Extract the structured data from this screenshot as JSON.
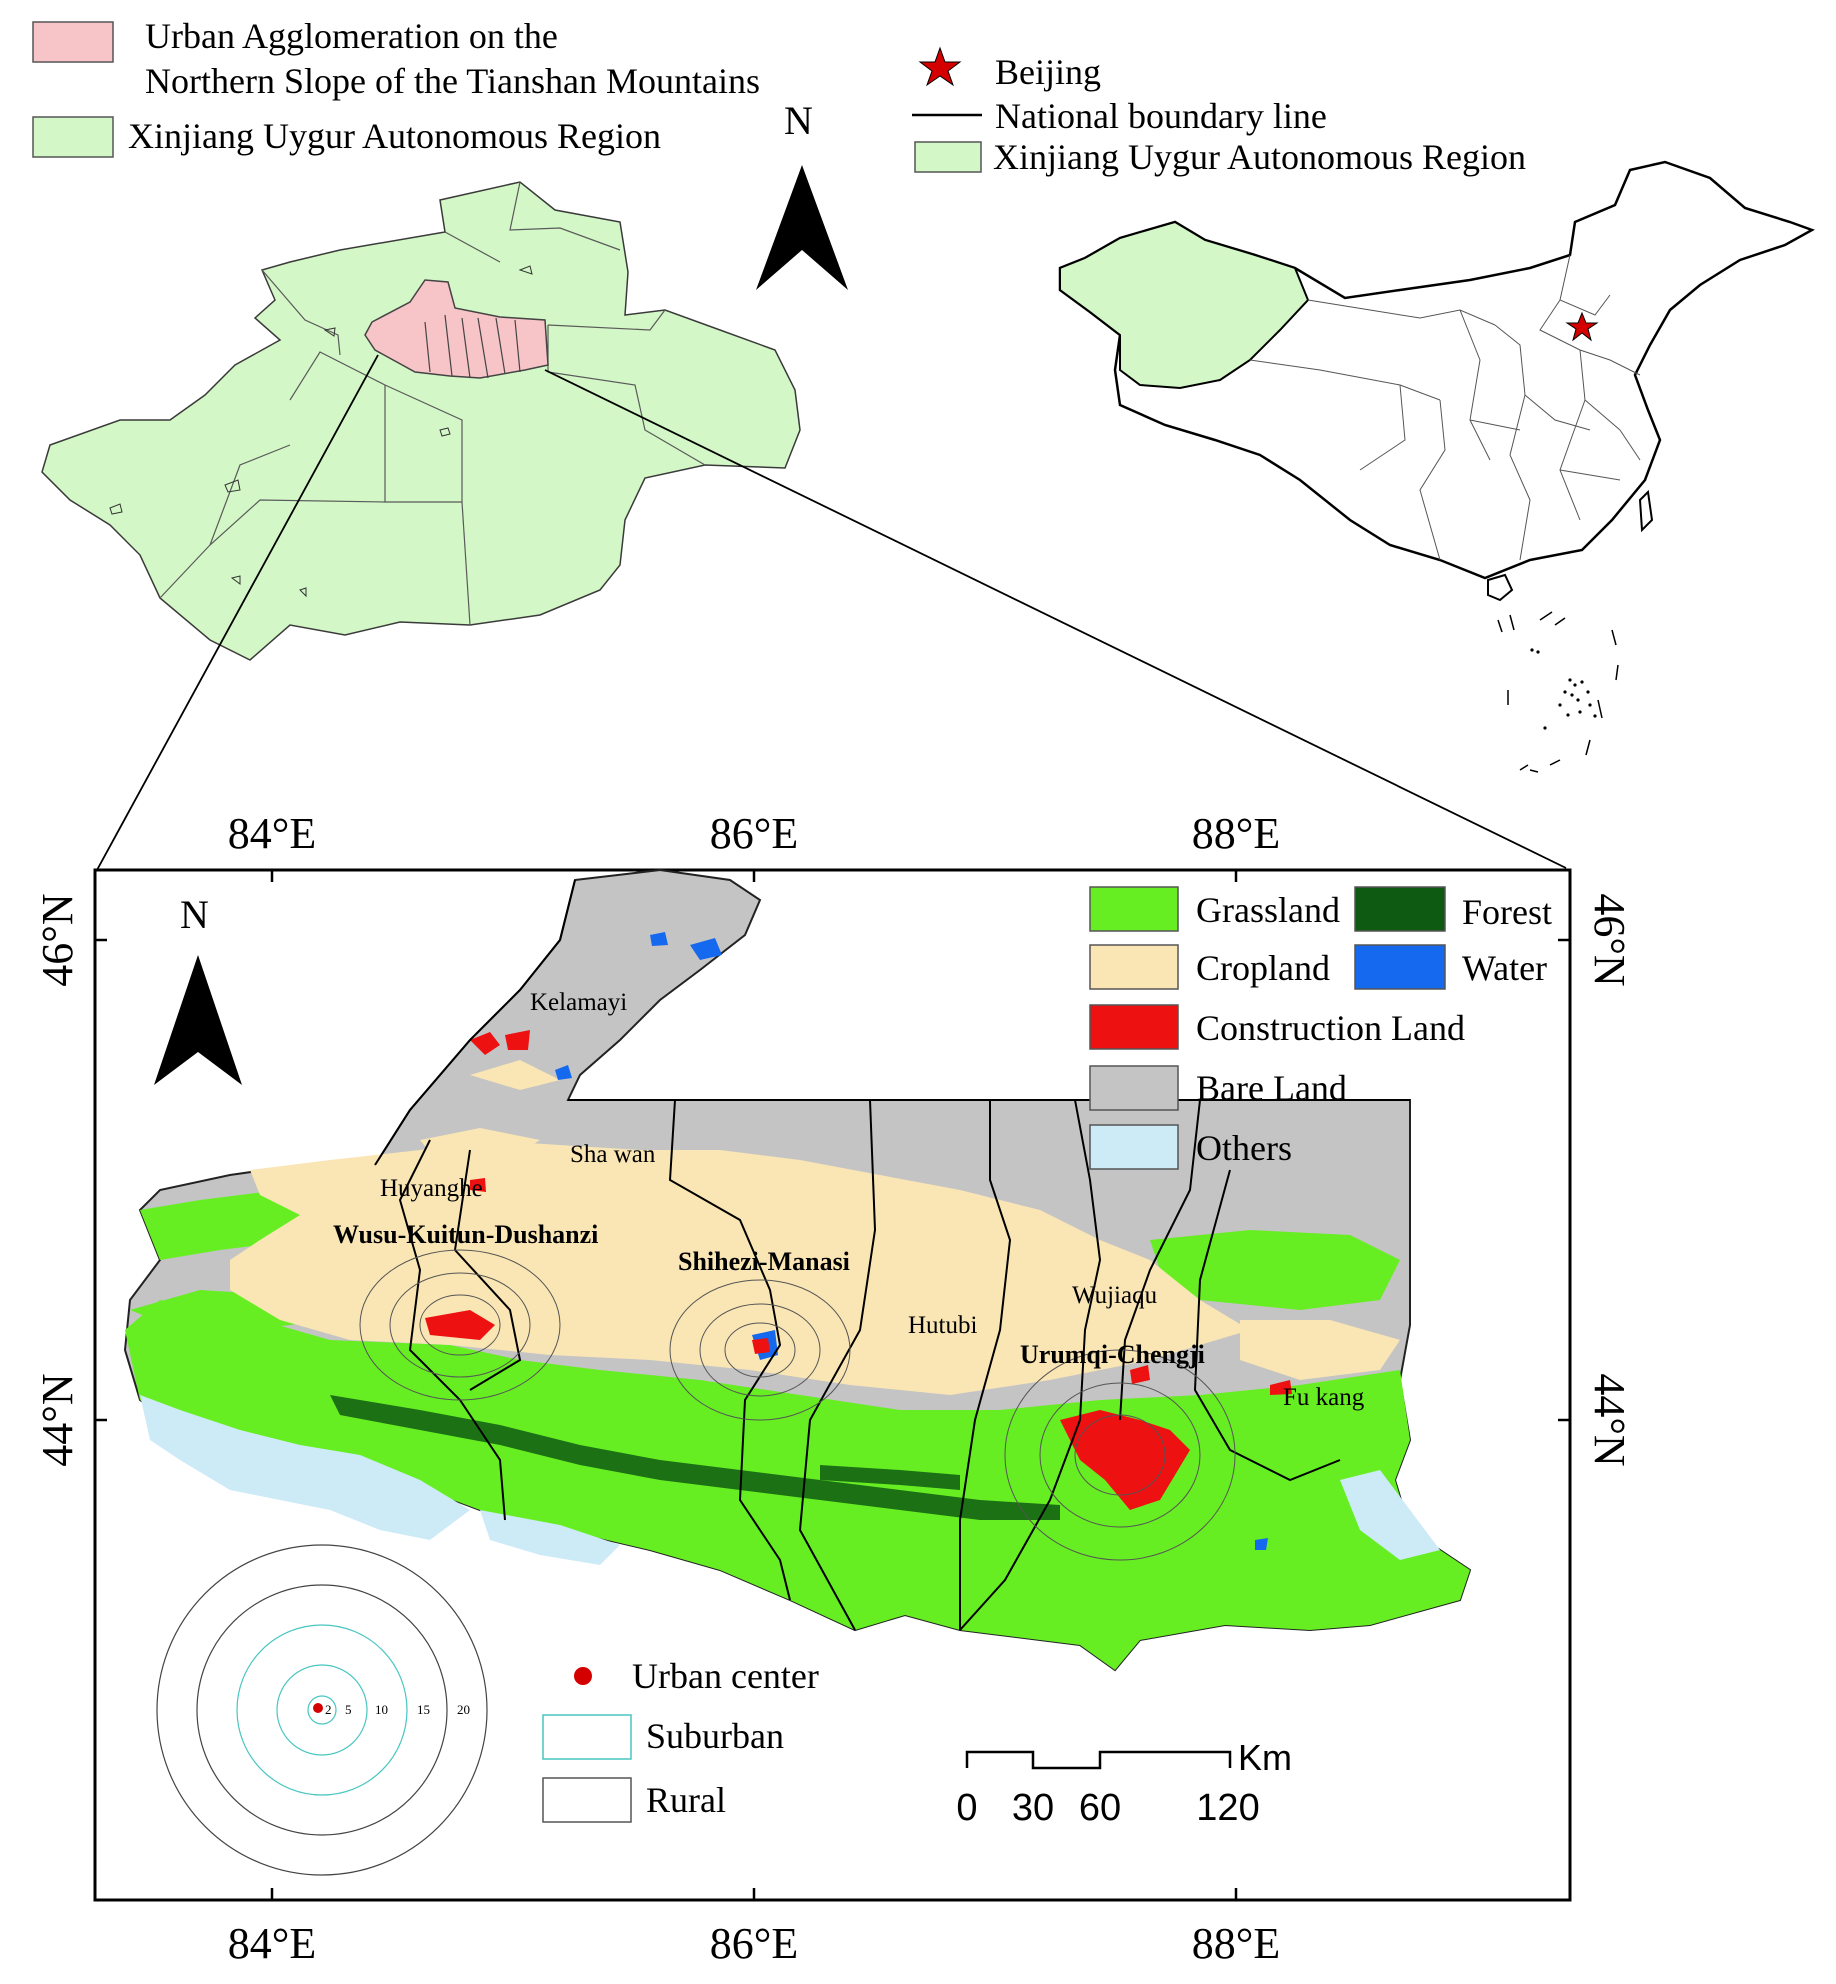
{
  "top_left_legend": {
    "items": [
      {
        "label_line1": "Urban Agglomeration on the",
        "label_line2": "Northern Slope of the Tianshan Mountains",
        "color": "#f7c4c8"
      },
      {
        "label": "Xinjiang Uygur Autonomous Region",
        "color": "#d3f7c6"
      }
    ],
    "north": "N"
  },
  "top_right_legend": {
    "beijing": "Beijing",
    "boundary": "National boundary line",
    "xinjiang": "Xinjiang Uygur Autonomous Region"
  },
  "main_map": {
    "north": "N",
    "lon_top": [
      "84°E",
      "86°E",
      "88°E"
    ],
    "lon_bottom": [
      "84°E",
      "86°E",
      "88°E"
    ],
    "lat_left": [
      "46°N",
      "44°N"
    ],
    "lat_right": [
      "46°N",
      "44°N"
    ],
    "landcover_legend": {
      "grassland": "Grassland",
      "forest": "Forest",
      "cropland": "Cropland",
      "water": "Water",
      "construction": "Construction Land",
      "bare": "Bare Land",
      "others": "Others"
    },
    "colors": {
      "grassland": "#66ee22",
      "forest": "#0f5a13",
      "cropland": "#fae6b4",
      "water": "#1469ee",
      "construction": "#ee1111",
      "bare": "#c4c4c4",
      "others": "#cdeaf7"
    },
    "places": {
      "kelamayi": "Kelamayi",
      "shawan": "Sha wan",
      "huyanghe": "Huyanghe",
      "wusu": "Wusu-Kuitun-Dushanzi",
      "shihezi": "Shihezi-Manasi",
      "hutubi": "Hutubi",
      "wujiaqu": "Wujiaqu",
      "urumqi": "Urumqi-Chengji",
      "fukang": "Fu kang"
    },
    "rings_legend": {
      "center": "Urban center",
      "suburban": "Suburban",
      "rural": "Rural",
      "ring_labels": [
        "2",
        "5",
        "10",
        "15",
        "20"
      ]
    },
    "scale_bar": {
      "unit": "Km",
      "ticks": [
        "0",
        "30",
        "60",
        "120"
      ]
    }
  }
}
